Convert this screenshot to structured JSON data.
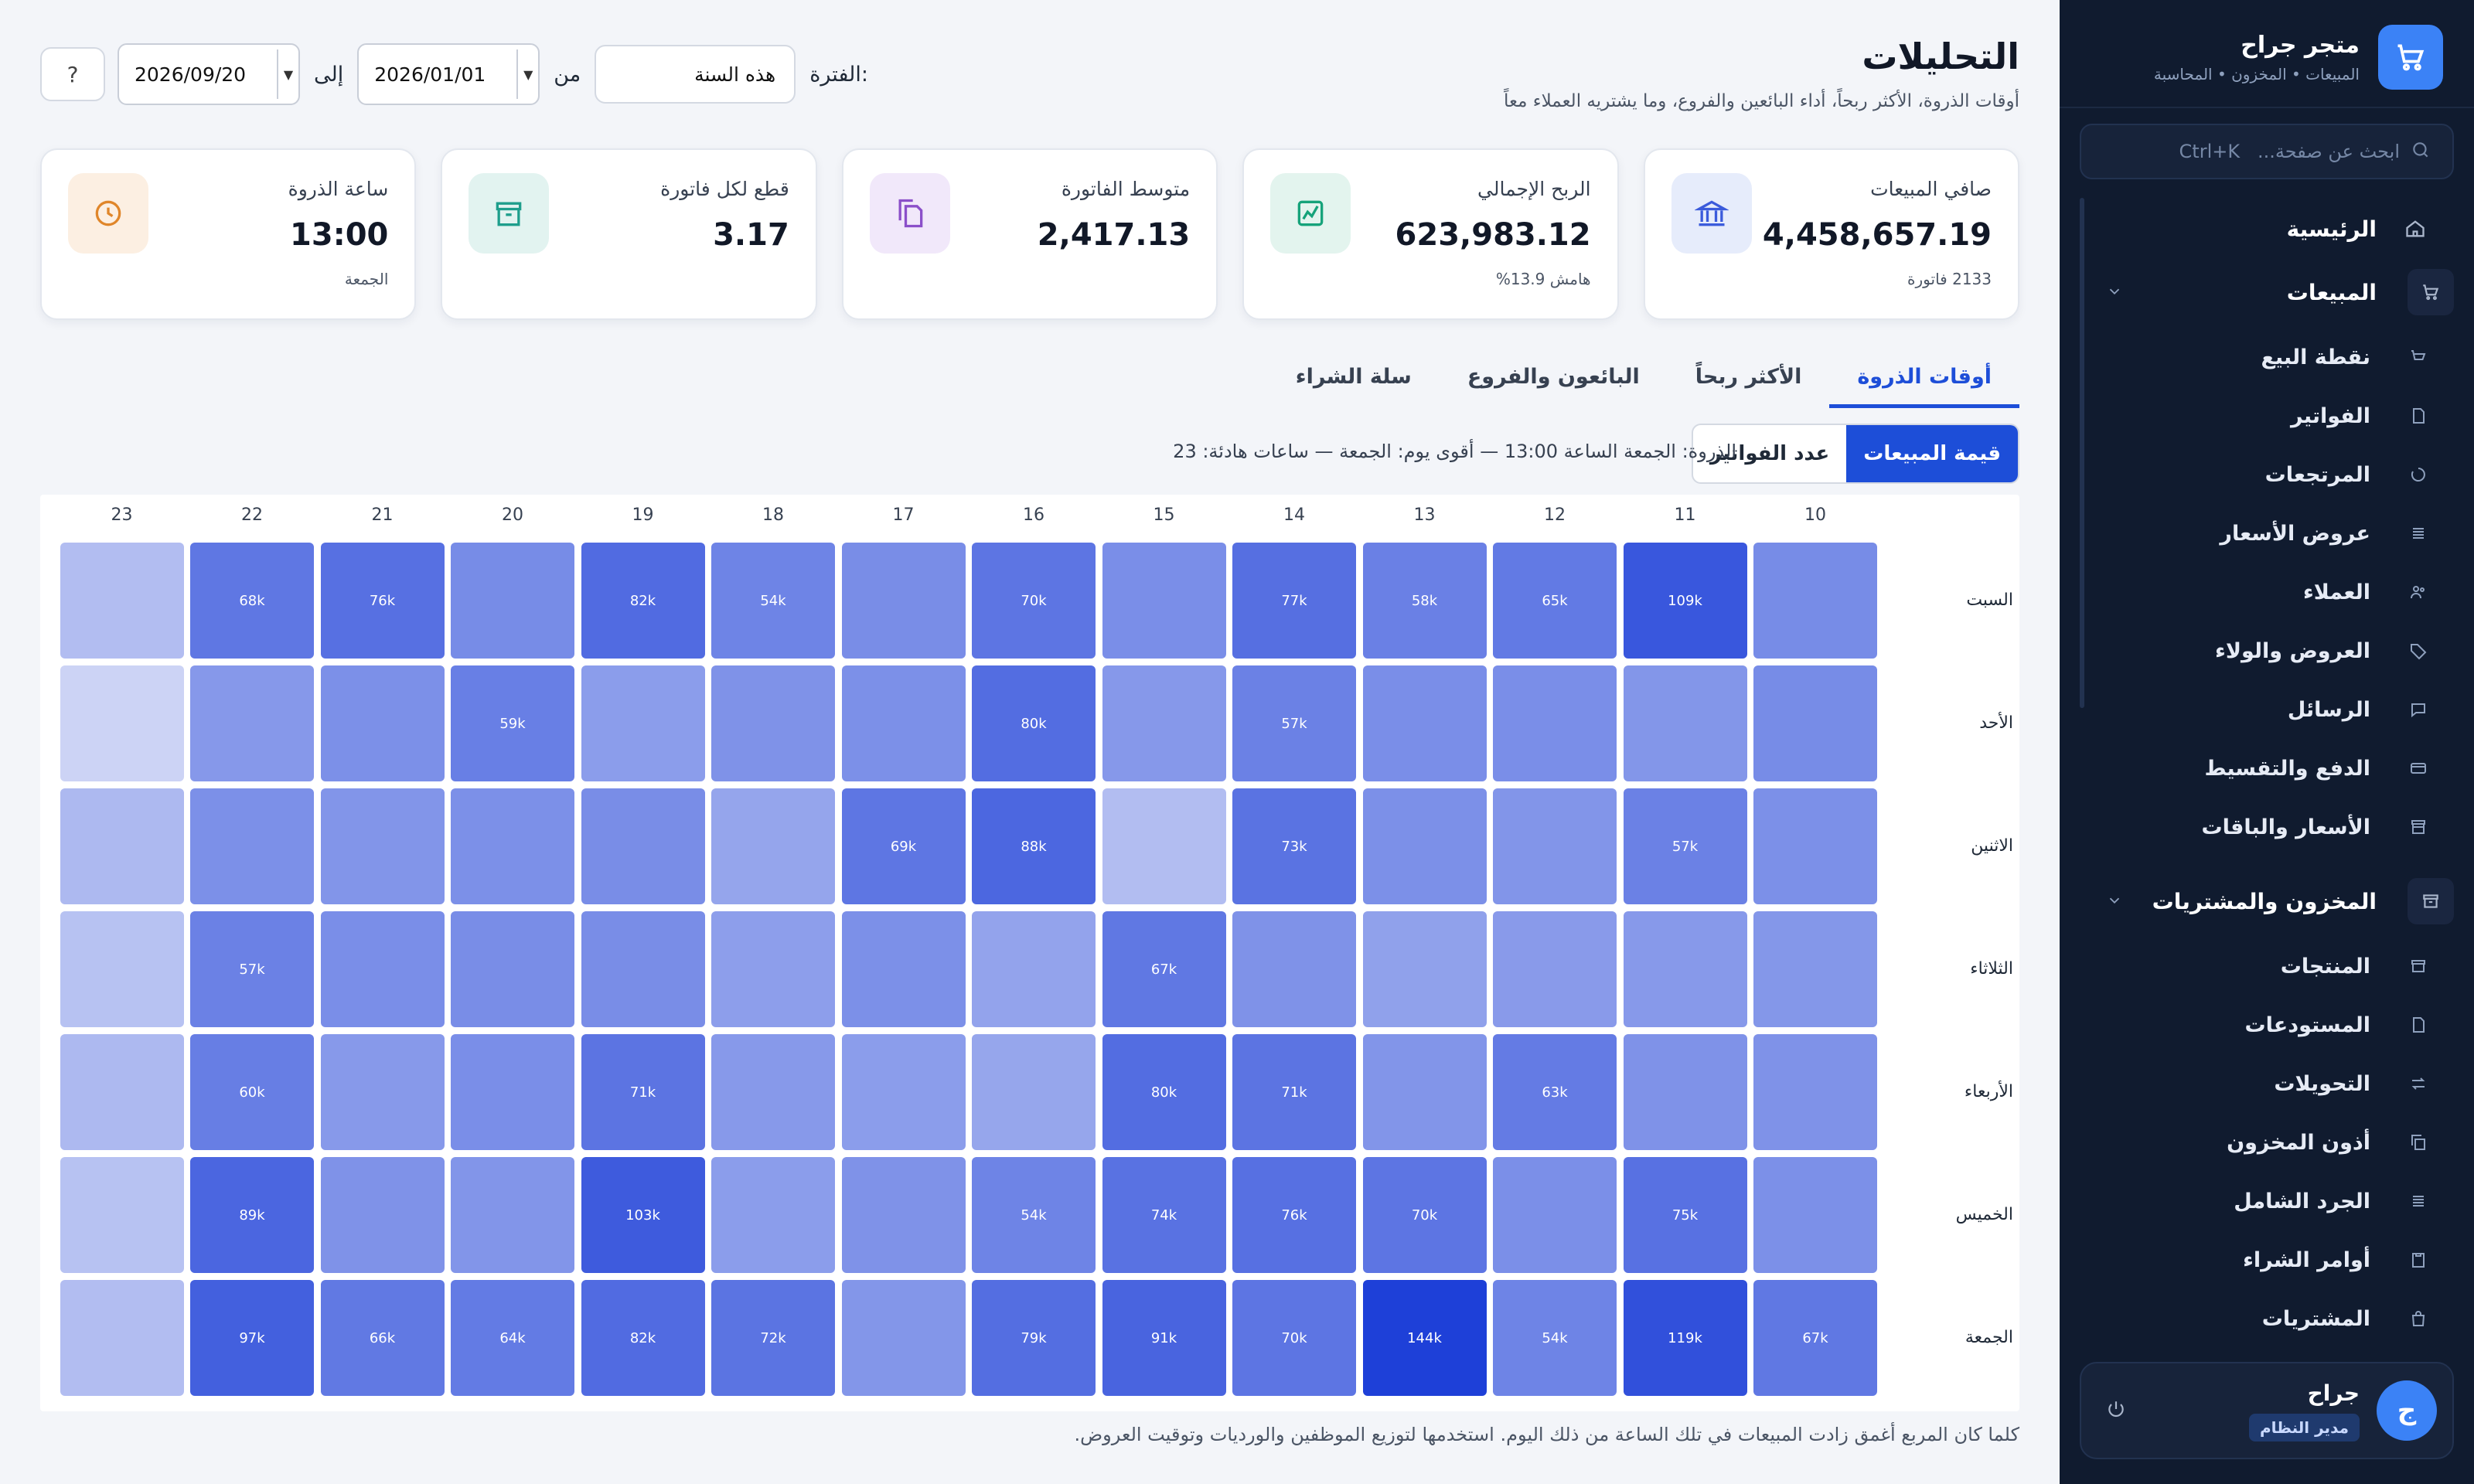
{
  "sidebar": {
    "brand_name": "متجر جراح",
    "brand_sub": "المبيعات • المخزون • المحاسبة",
    "search_placeholder": "ابحث عن صفحة...   Ctrl+K",
    "home": "الرئيسية",
    "sales_group": "المبيعات",
    "sales_items": [
      "نقطة البيع",
      "الفواتير",
      "المرتجعات",
      "عروض الأسعار",
      "العملاء",
      "العروض والولاء",
      "الرسائل",
      "الدفع والتقسيط",
      "الأسعار والباقات"
    ],
    "inventory_group": "المخزون والمشتريات",
    "inventory_items": [
      "المنتجات",
      "المستودعات",
      "التحويلات",
      "أذون المخزون",
      "الجرد الشامل",
      "أوامر الشراء",
      "المشتريات"
    ],
    "user_name": "جراح",
    "user_initial": "ج",
    "user_role": "مدير النظام"
  },
  "header": {
    "title": "التحليلات",
    "subtitle": "أوقات الذروة، الأكثر ربحاً، أداء البائعين والفروع، وما يشتريه العملاء معاً"
  },
  "filters": {
    "period_label": "الفترة:",
    "period_value": "هذه السنة",
    "from_label": "من",
    "from_value": "2026/01/01",
    "to_label": "إلى",
    "to_value": "2026/09/20",
    "help": "?"
  },
  "kpis": [
    {
      "label": "صافي المبيعات",
      "value": "4,458,657.19",
      "foot": "2133 فاتورة",
      "icon": "bank-icon",
      "color": "#3b5bdb",
      "bg": "#e6ecfb"
    },
    {
      "label": "الربح الإجمالي",
      "value": "623,983.12",
      "foot": "هامش 13.9%",
      "icon": "chart-icon",
      "color": "#16a37a",
      "bg": "#e3f4ee"
    },
    {
      "label": "متوسط الفاتورة",
      "value": "2,417.13",
      "foot": "",
      "icon": "document-icon",
      "color": "#8b4fc9",
      "bg": "#f1e8fa"
    },
    {
      "label": "قطع لكل فاتورة",
      "value": "3.17",
      "foot": "",
      "icon": "box-icon",
      "color": "#1e9e8c",
      "bg": "#e2f3f0"
    },
    {
      "label": "ساعة الذروة",
      "value": "13:00",
      "foot": "الجمعة",
      "icon": "clock-icon",
      "color": "#e0862a",
      "bg": "#fcefe2"
    }
  ],
  "tabs": [
    "أوقات الذروة",
    "الأكثر ربحاً",
    "البائعون والفروع",
    "سلة الشراء"
  ],
  "active_tab": 0,
  "metric_toggle": {
    "sales_value": "قيمة المبيعات",
    "invoice_count": "عدد الفواتير"
  },
  "peak_note": "الذروة: الجمعة الساعة 13:00 — أقوى يوم: الجمعة — ساعات هادئة: 23",
  "footnote": "كلما كان المربع أغمق زادت المبيعات في تلك الساعة من ذلك اليوم. استخدمها لتوزيع الموظفين والورديات وتوقيت العروض.",
  "chart_data": {
    "type": "heatmap",
    "x": [
      "10",
      "11",
      "12",
      "13",
      "14",
      "15",
      "16",
      "17",
      "18",
      "19",
      "20",
      "21",
      "22",
      "23"
    ],
    "y": [
      "السبت",
      "الأحد",
      "الاثنين",
      "الثلاثاء",
      "الأربعاء",
      "الخميس",
      "الجمعة"
    ],
    "values": [
      [
        46,
        109,
        65,
        58,
        77,
        44,
        70,
        45,
        54,
        82,
        46,
        76,
        68,
        10
      ],
      [
        46,
        37,
        44,
        44,
        57,
        35,
        80,
        42,
        40,
        31,
        59,
        42,
        35,
        2
      ],
      [
        42,
        57,
        38,
        42,
        73,
        10,
        88,
        69,
        25,
        45,
        42,
        38,
        42,
        12
      ],
      [
        36,
        34,
        33,
        28,
        40,
        67,
        26,
        42,
        30,
        45,
        45,
        44,
        57,
        8
      ],
      [
        40,
        40,
        63,
        38,
        71,
        80,
        24,
        31,
        34,
        71,
        44,
        34,
        60,
        12
      ],
      [
        42,
        75,
        43,
        70,
        76,
        74,
        54,
        40,
        31,
        103,
        38,
        40,
        89,
        8
      ],
      [
        67,
        119,
        54,
        144,
        70,
        91,
        79,
        37,
        72,
        82,
        64,
        66,
        97,
        10
      ]
    ],
    "labels": [
      [
        "",
        "109k",
        "65k",
        "58k",
        "77k",
        "",
        "70k",
        "",
        "54k",
        "82k",
        "",
        "76k",
        "68k",
        ""
      ],
      [
        "",
        "",
        "",
        "",
        "57k",
        "",
        "80k",
        "",
        "",
        "",
        "59k",
        "",
        "",
        ""
      ],
      [
        "",
        "57k",
        "",
        "",
        "73k",
        "",
        "88k",
        "69k",
        "",
        "",
        "",
        "",
        "",
        ""
      ],
      [
        "",
        "",
        "",
        "",
        "",
        "67k",
        "",
        "",
        "",
        "",
        "",
        "",
        "57k",
        ""
      ],
      [
        "",
        "",
        "63k",
        "",
        "71k",
        "80k",
        "",
        "",
        "",
        "71k",
        "",
        "",
        "60k",
        ""
      ],
      [
        "",
        "75k",
        "",
        "70k",
        "76k",
        "74k",
        "54k",
        "",
        "",
        "103k",
        "",
        "",
        "89k",
        ""
      ],
      [
        "67k",
        "119k",
        "54k",
        "144k",
        "70k",
        "91k",
        "79k",
        "",
        "72k",
        "82k",
        "64k",
        "66k",
        "97k",
        ""
      ]
    ],
    "max": 144,
    "color_low": "#f8f9fd",
    "color_high": "#1e40d8"
  }
}
